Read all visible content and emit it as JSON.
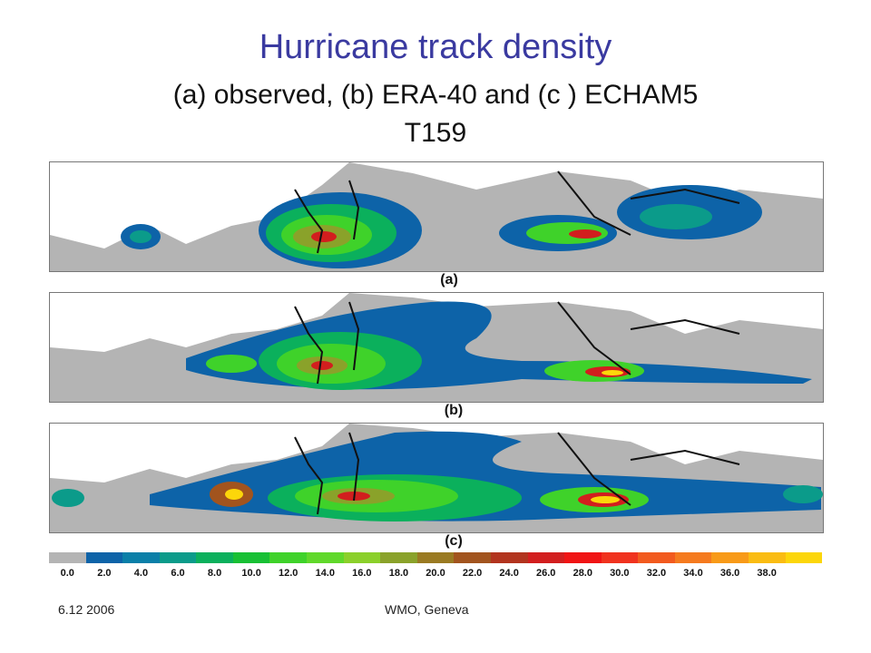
{
  "slide": {
    "title": "Hurricane track density",
    "subtitle_line1": "(a) observed,  (b) ERA-40 and (c ) ECHAM5",
    "subtitle_line2": "T159"
  },
  "panels": [
    {
      "id": "a",
      "label": "(a)"
    },
    {
      "id": "b",
      "label": "(b)"
    },
    {
      "id": "c",
      "label": "(c)"
    }
  ],
  "colorbar": {
    "colors": [
      "#b4b4b4",
      "#0d63a8",
      "#0a7fa8",
      "#0b9b8a",
      "#0bb05c",
      "#18c034",
      "#3fd22a",
      "#60d82a",
      "#8bd02a",
      "#8aa22a",
      "#9a7a22",
      "#a2541e",
      "#b2341e",
      "#d21e1e",
      "#f01414",
      "#f0321e",
      "#f25a1e",
      "#f57a1e",
      "#f89a18",
      "#fabc12",
      "#fcd60a"
    ],
    "ticks": [
      "0.0",
      "2.0",
      "4.0",
      "6.0",
      "8.0",
      "10.0",
      "12.0",
      "14.0",
      "16.0",
      "18.0",
      "20.0",
      "22.0",
      "24.0",
      "26.0",
      "28.0",
      "30.0",
      "32.0",
      "34.0",
      "36.0",
      "38.0"
    ]
  },
  "footer": {
    "date": "6.12 2006",
    "venue": "WMO, Geneva"
  }
}
